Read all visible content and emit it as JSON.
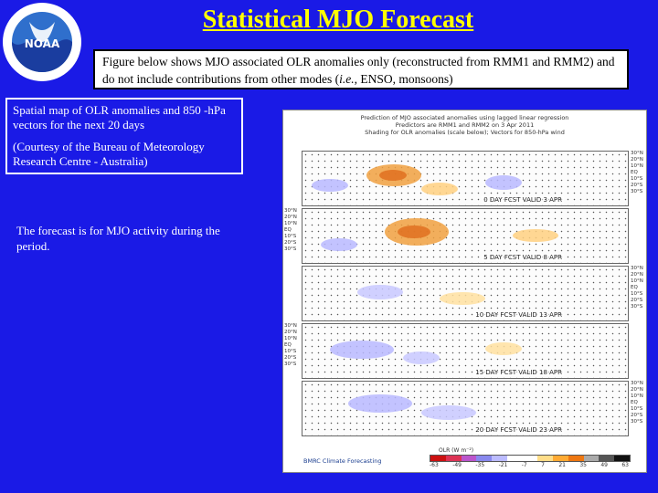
{
  "header": {
    "title": "Statistical MJO Forecast",
    "logo_text": "NOAA"
  },
  "intro": {
    "text_before_italic": "Figure below shows MJO associated OLR anomalies only (reconstructed from RMM1 and RMM2) and do not include contributions from other modes (",
    "italic": "i.e.",
    "text_after_italic": ", ENSO, monsoons)"
  },
  "left_box": {
    "line1": "Spatial map of OLR anomalies and 850 -hPa vectors for the next 20 days",
    "line2": "(Courtesy of the Bureau of Meteorology Research Centre - Australia)"
  },
  "forecast_note": "The forecast is for MJO activity during the period.",
  "map": {
    "header_lines": [
      "Prediction of MJO associated anomalies using lagged linear regression",
      "Predictors are RMM1 and RMM2 on 3 Apr 2011",
      "Shading for OLR anomalies (scale below); Vectors for 850-hPa wind"
    ],
    "panels": [
      {
        "label": "0 DAY FCST VALID 3 APR"
      },
      {
        "label": "5 DAY FCST VALID 8 APR"
      },
      {
        "label": "10 DAY FCST VALID 13 APR"
      },
      {
        "label": "15 DAY FCST VALID 18 APR"
      },
      {
        "label": "20 DAY FCST VALID 23 APR"
      }
    ],
    "lat_labels": [
      "30°N",
      "20°N",
      "10°N",
      "EQ",
      "10°S",
      "20°S",
      "30°S"
    ],
    "colorbar_title": "OLR (W m⁻²)",
    "colorbar_ticks": [
      "-63",
      "-49",
      "-35",
      "-21",
      "-7",
      "7",
      "21",
      "35",
      "49",
      "63"
    ],
    "colorbar_colors": [
      "#cc1111",
      "#dd3355",
      "#bb55cc",
      "#8888ee",
      "#bbbbff",
      "#ffffff",
      "#ffffff",
      "#ffdd88",
      "#ffaa33",
      "#ee7711",
      "#aaaaaa",
      "#555555",
      "#111111"
    ],
    "credit": "BMRC Climate Forecasting"
  }
}
